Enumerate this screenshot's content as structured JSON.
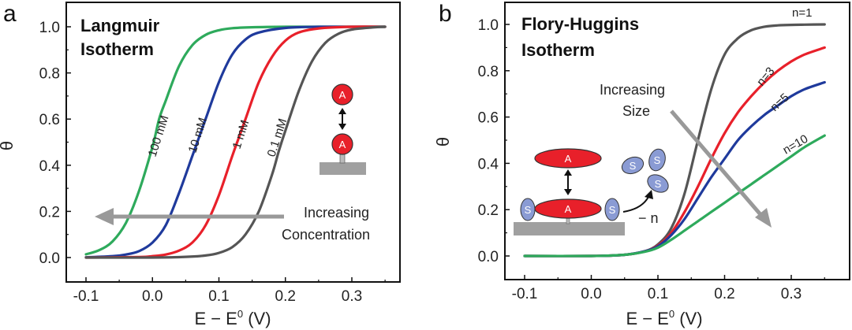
{
  "chart_data": [
    {
      "type": "line",
      "panel": "a",
      "title": "Langmuir Isotherm",
      "title_lines": [
        "Langmuir",
        "Isotherm"
      ],
      "xlabel": "E − E⁰ (V)",
      "xlabel_main": "E − E",
      "xlabel_sup": "0",
      "xlabel_unit": " (V)",
      "ylabel": "θ",
      "xlim": [
        -0.13,
        0.37
      ],
      "ylim": [
        -0.1,
        1.1
      ],
      "xticks": [
        -0.1,
        0.0,
        0.1,
        0.2,
        0.3
      ],
      "xtick_labels": [
        "-0.1",
        "0.0",
        "0.1",
        "0.2",
        "0.3"
      ],
      "yticks": [
        0.0,
        0.2,
        0.4,
        0.6,
        0.8,
        1.0
      ],
      "ytick_labels": [
        "0.0",
        "0.2",
        "0.4",
        "0.6",
        "0.8",
        "1.0"
      ],
      "grid": false,
      "series": [
        {
          "name": "100 mM",
          "color": "#2eaa5c",
          "x": [
            -0.1,
            -0.08,
            -0.06,
            -0.04,
            -0.02,
            0.0,
            0.01,
            0.02,
            0.04,
            0.06,
            0.08,
            0.1,
            0.12,
            0.15,
            0.2,
            0.25,
            0.3,
            0.35
          ],
          "y": [
            0.014,
            0.032,
            0.07,
            0.15,
            0.29,
            0.48,
            0.6,
            0.68,
            0.83,
            0.92,
            0.965,
            0.985,
            0.994,
            0.998,
            1.0,
            1.0,
            1.0,
            1.0
          ]
        },
        {
          "name": "10 mM",
          "color": "#1f3a9c",
          "x": [
            -0.1,
            -0.06,
            -0.04,
            -0.02,
            0.0,
            0.02,
            0.04,
            0.06,
            0.07,
            0.08,
            0.1,
            0.12,
            0.14,
            0.16,
            0.2,
            0.25,
            0.3,
            0.35
          ],
          "y": [
            0.001,
            0.006,
            0.013,
            0.028,
            0.065,
            0.14,
            0.28,
            0.44,
            0.52,
            0.6,
            0.76,
            0.88,
            0.945,
            0.975,
            0.995,
            1.0,
            1.0,
            1.0
          ]
        },
        {
          "name": "1 mM",
          "color": "#e8202a",
          "x": [
            -0.1,
            -0.02,
            0.0,
            0.02,
            0.04,
            0.06,
            0.08,
            0.1,
            0.12,
            0.13,
            0.14,
            0.16,
            0.18,
            0.2,
            0.22,
            0.25,
            0.3,
            0.35
          ],
          "y": [
            0.0,
            0.002,
            0.006,
            0.013,
            0.03,
            0.065,
            0.14,
            0.27,
            0.44,
            0.52,
            0.6,
            0.76,
            0.87,
            0.94,
            0.975,
            0.993,
            1.0,
            1.0
          ]
        },
        {
          "name": "0.1 mM",
          "color": "#555555",
          "x": [
            -0.1,
            0.0,
            0.05,
            0.08,
            0.1,
            0.12,
            0.14,
            0.16,
            0.18,
            0.19,
            0.2,
            0.22,
            0.24,
            0.26,
            0.28,
            0.3,
            0.33,
            0.35
          ],
          "y": [
            0.0,
            0.0,
            0.003,
            0.009,
            0.02,
            0.045,
            0.1,
            0.2,
            0.36,
            0.46,
            0.55,
            0.72,
            0.85,
            0.93,
            0.97,
            0.988,
            0.997,
            1.0
          ]
        }
      ],
      "annotations": {
        "arrow_label_lines": [
          "Increasing",
          "Concentration"
        ],
        "schematic_glyph": "A"
      }
    },
    {
      "type": "line",
      "panel": "b",
      "title": "Flory-Huggins Isotherm",
      "title_lines": [
        "Flory-Huggins",
        "Isotherm"
      ],
      "xlabel": "E − E⁰ (V)",
      "xlabel_main": "E − E",
      "xlabel_sup": "0",
      "xlabel_unit": " (V)",
      "ylabel": "θ",
      "xlim": [
        -0.13,
        0.36
      ],
      "ylim": [
        -0.1,
        1.1
      ],
      "xticks": [
        -0.1,
        0.0,
        0.1,
        0.2,
        0.3
      ],
      "xtick_labels": [
        "-0.1",
        "0.0",
        "0.1",
        "0.2",
        "0.3"
      ],
      "yticks": [
        0.0,
        0.2,
        0.4,
        0.6,
        0.8,
        1.0
      ],
      "ytick_labels": [
        "0.0",
        "0.2",
        "0.4",
        "0.6",
        "0.8",
        "1.0"
      ],
      "grid": false,
      "series": [
        {
          "name": "n=1",
          "color": "#555555",
          "x": [
            -0.1,
            0.0,
            0.05,
            0.08,
            0.1,
            0.12,
            0.14,
            0.16,
            0.18,
            0.2,
            0.22,
            0.24,
            0.26,
            0.28,
            0.3,
            0.32,
            0.35
          ],
          "y": [
            0.0,
            0.0,
            0.005,
            0.02,
            0.05,
            0.12,
            0.27,
            0.5,
            0.72,
            0.87,
            0.94,
            0.975,
            0.99,
            0.996,
            0.998,
            0.999,
            1.0
          ]
        },
        {
          "name": "n=3",
          "color": "#e8202a",
          "x": [
            -0.1,
            0.0,
            0.05,
            0.08,
            0.1,
            0.12,
            0.14,
            0.16,
            0.18,
            0.2,
            0.22,
            0.24,
            0.26,
            0.28,
            0.3,
            0.32,
            0.35
          ],
          "y": [
            0.0,
            0.0,
            0.005,
            0.02,
            0.045,
            0.1,
            0.19,
            0.3,
            0.42,
            0.53,
            0.62,
            0.69,
            0.75,
            0.8,
            0.84,
            0.87,
            0.9
          ]
        },
        {
          "name": "n=5",
          "color": "#1f3a9c",
          "x": [
            -0.1,
            0.0,
            0.05,
            0.08,
            0.1,
            0.12,
            0.14,
            0.16,
            0.18,
            0.2,
            0.22,
            0.24,
            0.26,
            0.28,
            0.3,
            0.32,
            0.35
          ],
          "y": [
            0.0,
            0.0,
            0.005,
            0.02,
            0.042,
            0.09,
            0.16,
            0.25,
            0.34,
            0.42,
            0.5,
            0.56,
            0.61,
            0.65,
            0.69,
            0.72,
            0.75
          ]
        },
        {
          "name": "n=10",
          "color": "#2eaa5c",
          "x": [
            -0.1,
            0.0,
            0.05,
            0.08,
            0.1,
            0.12,
            0.14,
            0.16,
            0.18,
            0.2,
            0.22,
            0.24,
            0.26,
            0.28,
            0.3,
            0.32,
            0.35
          ],
          "y": [
            0.0,
            0.0,
            0.005,
            0.018,
            0.036,
            0.07,
            0.11,
            0.15,
            0.19,
            0.23,
            0.27,
            0.31,
            0.35,
            0.39,
            0.43,
            0.47,
            0.52
          ]
        }
      ],
      "annotations": {
        "arrow_label_lines": [
          "Increasing",
          "Size"
        ],
        "schematic_glyph_adsorbate": "A",
        "schematic_glyph_solvent": "S",
        "stoichiometry_label": "− n"
      }
    }
  ]
}
